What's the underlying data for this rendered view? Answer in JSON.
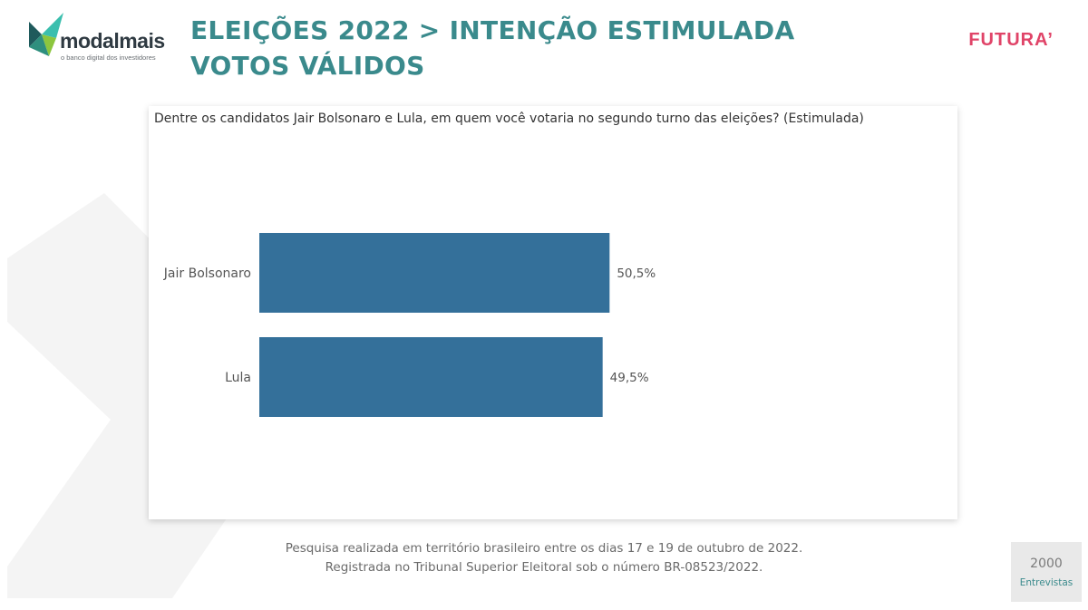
{
  "header": {
    "title_line1": "ELEIÇÕES 2022 > INTENÇÃO ESTIMULADA",
    "title_line2": "VOTOS VÁLIDOS",
    "title_color": "#3a8a8c"
  },
  "logo": {
    "wordmark": "modalmais",
    "tagline": "o banco digital dos investidores",
    "icon": "modalmais-x-logo",
    "colors": [
      "#1f5a5c",
      "#3bbfae",
      "#8cc63e"
    ]
  },
  "partner": {
    "name": "FUTURA’",
    "color": "#e04468"
  },
  "chart_data": {
    "type": "bar",
    "orientation": "horizontal",
    "title": "Dentre os candidatos Jair Bolsonaro e Lula, em quem você votaria no segundo turno das eleições? (Estimulada)",
    "categories": [
      "Jair Bolsonaro",
      "Lula"
    ],
    "values": [
      50.5,
      49.5
    ],
    "value_labels": [
      "50,5%",
      "49,5%"
    ],
    "unit": "%",
    "xlim": [
      0,
      100
    ],
    "grid": false,
    "legend": "none",
    "bar_color": "#34709a"
  },
  "footnote": {
    "line1": "Pesquisa realizada em território brasileiro entre os dias 17 e 19 de outubro de 2022.",
    "line2": "Registrada no Tribunal Superior Eleitoral sob o número BR-08523/2022."
  },
  "sample": {
    "count": "2000",
    "label": "Entrevistas"
  }
}
